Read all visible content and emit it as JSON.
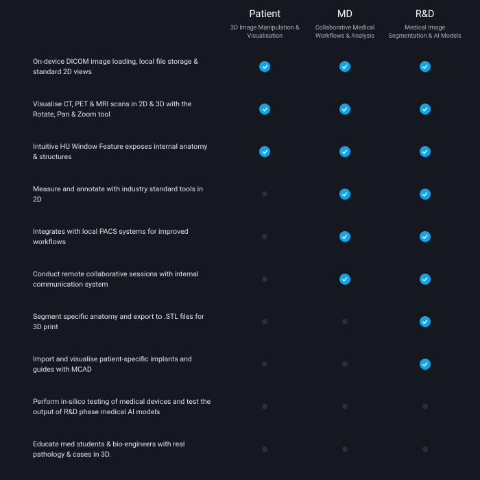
{
  "colors": {
    "background": "#15181f",
    "text": "#dfe2ea",
    "subtext": "#a9adb8",
    "check_bg": "#0ea5e9",
    "check_fg": "#ffffff",
    "off_dot": "#2a2e38"
  },
  "plans": [
    {
      "title": "Patient",
      "subtitle": "3D Image Manipulation & Visualisation"
    },
    {
      "title": "MD",
      "subtitle": "Collaborative Medical Workflows & Analysis"
    },
    {
      "title": "R&D",
      "subtitle": "Medical Image Segmentation & AI Models"
    }
  ],
  "features": [
    {
      "label": "On-device DICOM image loading, local file storage & standard 2D views",
      "values": [
        true,
        true,
        true
      ]
    },
    {
      "label": "Visualise CT, PET & MRI scans in 2D & 3D with the Rotate, Pan & Zoom tool",
      "values": [
        true,
        true,
        true
      ]
    },
    {
      "label": "Intuitive HU Window Feature exposes internal anatomy & structures",
      "values": [
        true,
        true,
        true
      ]
    },
    {
      "label": "Measure and annotate with industry standard tools in 2D",
      "values": [
        false,
        true,
        true
      ]
    },
    {
      "label": "Integrates with local PACS systems for improved workflows",
      "values": [
        false,
        true,
        true
      ]
    },
    {
      "label": "Conduct remote collaborative sessions with internal communication system",
      "values": [
        false,
        true,
        true
      ]
    },
    {
      "label": "Segment specific anatomy and export to .STL files for 3D print",
      "values": [
        false,
        false,
        true
      ]
    },
    {
      "label": "Import and visualise patient-specific implants and guides with MCAD",
      "values": [
        false,
        false,
        true
      ]
    },
    {
      "label": "Perform in-silico testing of medical devices and test the output of R&D phase medical AI models",
      "values": [
        false,
        false,
        false
      ]
    },
    {
      "label": "Educate med students & bio-engineers with real pathology & cases in 3D.",
      "values": [
        false,
        false,
        false
      ]
    }
  ]
}
